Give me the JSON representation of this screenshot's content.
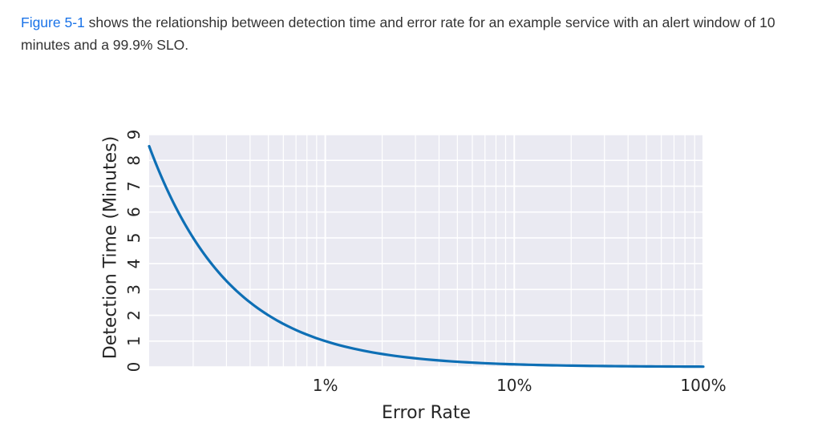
{
  "intro": {
    "figure_link": "Figure 5-1",
    "text": " shows the relationship between detection time and error rate for an example service with an alert window of 10 minutes and a 99.9% SLO."
  },
  "colors": {
    "link": "#1a73e8",
    "plot_background": "#eaeaf2",
    "grid": "#ffffff",
    "line": "#0e6fb5",
    "text": "#333333"
  },
  "chart_data": {
    "type": "line",
    "title": "",
    "xlabel": "Error Rate",
    "ylabel": "Detection Time (Minutes)",
    "x_scale": "log",
    "xlim": [
      0.00117,
      1.0
    ],
    "ylim": [
      0,
      9
    ],
    "x_tick_values": [
      0.01,
      0.1,
      1.0
    ],
    "x_tick_labels": [
      "1%",
      "10%",
      "100%"
    ],
    "y_ticks": [
      0,
      1,
      2,
      3,
      4,
      5,
      6,
      7,
      8,
      9
    ],
    "grid": true,
    "series": [
      {
        "x": [
          0.00117,
          0.0015,
          0.002,
          0.003,
          0.005,
          0.01,
          0.02,
          0.05,
          0.1,
          0.2,
          0.5,
          1.0
        ],
        "y": [
          8.55,
          6.67,
          5.0,
          3.33,
          2.0,
          1.0,
          0.5,
          0.2,
          0.1,
          0.05,
          0.02,
          0.01
        ]
      }
    ]
  }
}
